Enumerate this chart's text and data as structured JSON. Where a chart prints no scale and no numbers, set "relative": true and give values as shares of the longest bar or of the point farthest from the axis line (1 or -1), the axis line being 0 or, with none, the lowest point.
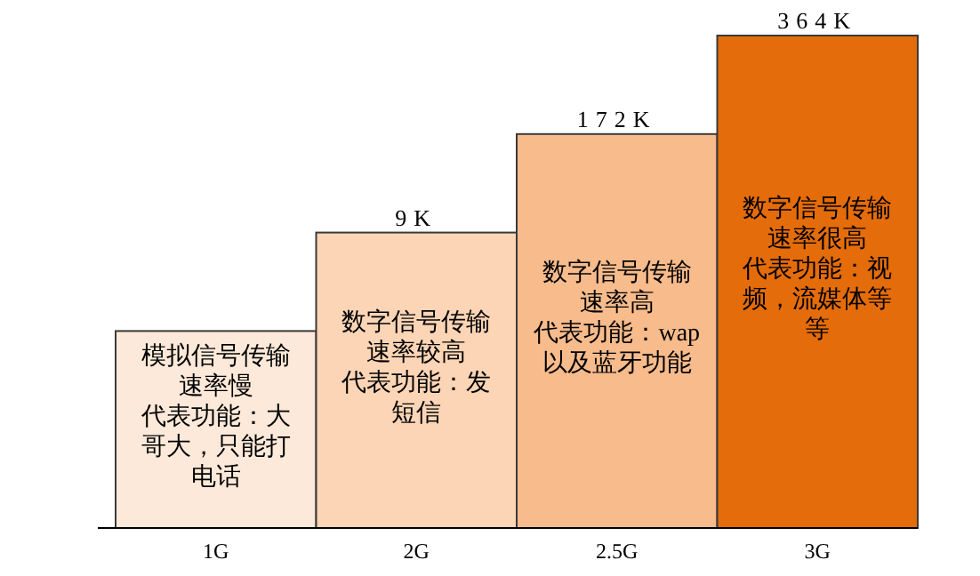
{
  "chart_data": {
    "type": "bar",
    "relative": true,
    "categories": [
      "1G",
      "2G",
      "2.5G",
      "3G"
    ],
    "values": [
      0.4,
      0.6,
      0.8,
      1
    ],
    "colors": [
      "#fde9d9",
      "#fbd5b5",
      "#f7bb8c",
      "#e46c0a"
    ],
    "annotations": [
      {
        "text": "9K",
        "x": "2G",
        "y": 0.6
      },
      {
        "text": "172K",
        "x": "2.5G",
        "y": 0.8
      },
      {
        "text": "364K",
        "x": "3G",
        "y": 1
      },
      "模拟信号传输速率慢",
      "代表功能：大哥大，只能打电话",
      "数字信号传输速率较高",
      "代表功能：发短信",
      "数字信号传输速率高",
      "代表功能：wap以及蓝牙功能",
      "数字信号传输速率很高",
      "代表功能：视频，流媒体等等"
    ]
  }
}
